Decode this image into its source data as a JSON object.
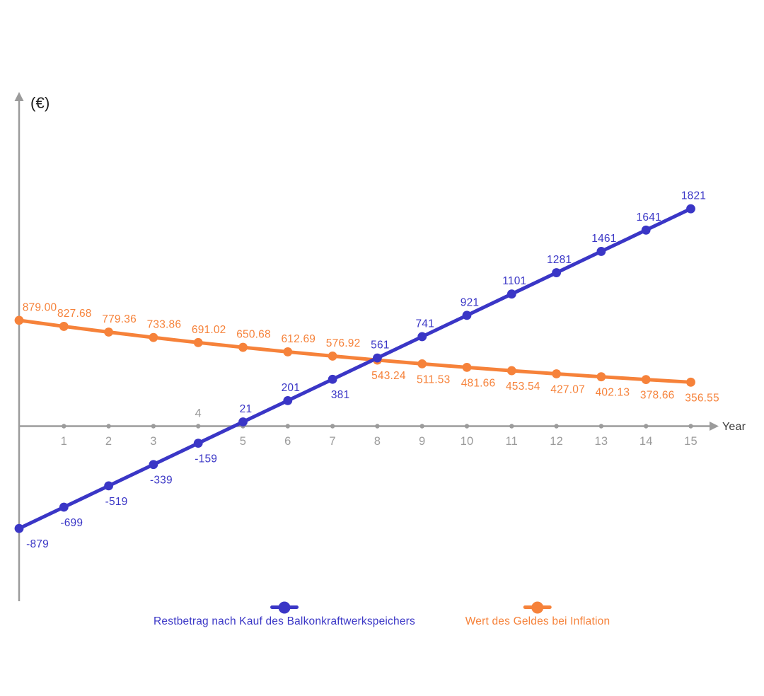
{
  "chart_data": {
    "type": "line",
    "title": "",
    "xlabel": "Year",
    "ylabel": "(€)",
    "x": [
      0,
      1,
      2,
      3,
      4,
      5,
      6,
      7,
      8,
      9,
      10,
      11,
      12,
      13,
      14,
      15
    ],
    "x_tick_labels": [
      "1",
      "2",
      "3",
      "4",
      "5",
      "6",
      "7",
      "8",
      "9",
      "10",
      "11",
      "12",
      "13",
      "14",
      "15"
    ],
    "ticks_above_axis": [
      4
    ],
    "grid": "off",
    "legend_position": "bottom",
    "axis_color": "#9b9b9b",
    "axis_text_color": "#3a3a3a",
    "ylim": [
      -1000,
      2000
    ],
    "series": [
      {
        "name": "Restbetrag nach Kauf des Balkonkraftwerkspeichers",
        "color": "#3a36c6",
        "values": [
          -879,
          -699,
          -519,
          -339,
          -159,
          21,
          201,
          381,
          561,
          741,
          921,
          1101,
          1281,
          1461,
          1641,
          1821
        ],
        "labels": [
          "-879",
          "-699",
          "-519",
          "-339",
          "-159",
          "21",
          "201",
          "381",
          "561",
          "741",
          "921",
          "1101",
          "1281",
          "1461",
          "1641",
          "1821"
        ],
        "label_side": [
          "below",
          "below",
          "below",
          "below",
          "below",
          "above",
          "above",
          "below",
          "above",
          "above",
          "above",
          "above",
          "above",
          "above",
          "above",
          "above"
        ]
      },
      {
        "name": "Wert des Geldes bei Inflation",
        "color": "#f6823a",
        "values": [
          879.0,
          827.68,
          779.36,
          733.86,
          691.02,
          650.68,
          612.69,
          576.92,
          543.24,
          511.53,
          481.66,
          453.54,
          427.07,
          402.13,
          378.66,
          356.55
        ],
        "labels": [
          "879.00",
          "827.68",
          "779.36",
          "733.86",
          "691.02",
          "650.68",
          "612.69",
          "576.92",
          "543.24",
          "511.53",
          "481.66",
          "453.54",
          "427.07",
          "402.13",
          "378.66",
          "356.55"
        ],
        "label_side": [
          "above",
          "above",
          "above",
          "above",
          "above",
          "above",
          "above",
          "above",
          "below",
          "below",
          "below",
          "below",
          "below",
          "below",
          "below",
          "below"
        ]
      }
    ]
  },
  "legend": {
    "items": [
      {
        "label": "Restbetrag nach Kauf des Balkonkraftwerkspeichers",
        "color": "#3a36c6"
      },
      {
        "label": "Wert des Geldes bei Inflation",
        "color": "#f6823a"
      }
    ]
  }
}
